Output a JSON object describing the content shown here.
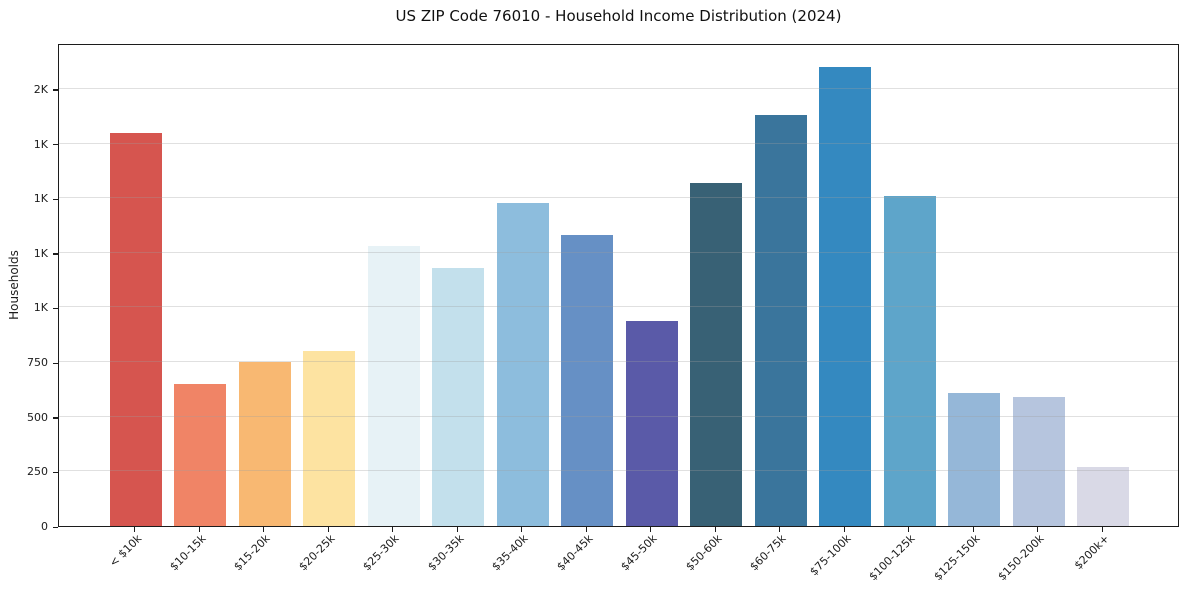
{
  "chart_data": {
    "type": "bar",
    "title": "US ZIP Code 76010 - Household Income Distribution (2024)",
    "xlabel": "",
    "ylabel": "Households",
    "categories": [
      "< $10k",
      "$10-15k",
      "$15-20k",
      "$20-25k",
      "$25-30k",
      "$30-35k",
      "$35-40k",
      "$40-45k",
      "$45-50k",
      "$50-60k",
      "$60-75k",
      "$75-100k",
      "$100-125k",
      "$125-150k",
      "$150-200k",
      "$200k+"
    ],
    "values": [
      1800,
      650,
      750,
      800,
      1280,
      1180,
      1480,
      1330,
      940,
      1570,
      1880,
      2100,
      1510,
      610,
      590,
      270
    ],
    "bar_colors": [
      "#d6554f",
      "#f08466",
      "#f8b872",
      "#fde3a1",
      "#e7f2f6",
      "#c3e0ec",
      "#8dbddd",
      "#6690c5",
      "#5a5aa8",
      "#386175",
      "#3a759c",
      "#3489c0",
      "#5ea5ca",
      "#95b7d8",
      "#b6c5de",
      "#d9d9e6"
    ],
    "ylim": [
      0,
      2210
    ],
    "yticks": [
      0,
      250,
      500,
      750,
      1000,
      1250,
      1500,
      1750,
      2000
    ],
    "ytick_labels": [
      "0",
      "250",
      "500",
      "750",
      "1K",
      "1K",
      "1K",
      "1K",
      "2K"
    ],
    "bar_width_fraction": 0.8,
    "grid": "horizontal",
    "legend_position": "none"
  },
  "colors": {
    "background": "#ffffff",
    "spine": "#1c1c1c",
    "grid": "#a0a0a0",
    "text": "#1c1c1c"
  }
}
